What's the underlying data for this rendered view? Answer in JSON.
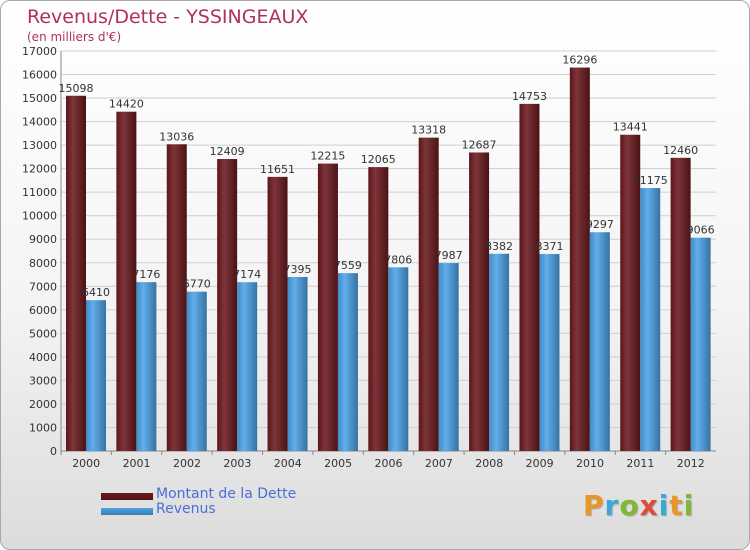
{
  "page": {
    "title": "Revenus/Dette - YSSINGEAUX",
    "subtitle": "(en milliers d'€)"
  },
  "legend": [
    {
      "label": "Montant de la Dette",
      "color": "#6b1a1e"
    },
    {
      "label": "Revenus",
      "color": "#4da3e8"
    }
  ],
  "brand": {
    "text": "Proxiti",
    "colors": [
      "#e8952a",
      "#3aa9d8",
      "#7fb832",
      "#e04a3a",
      "#3aa9d8",
      "#e8952a",
      "#7fb832"
    ]
  },
  "chart_data": {
    "type": "bar",
    "title": "Revenus/Dette - YSSINGEAUX",
    "subtitle": "(en milliers d'€)",
    "categories": [
      "2000",
      "2001",
      "2002",
      "2003",
      "2004",
      "2005",
      "2006",
      "2007",
      "2008",
      "2009",
      "2010",
      "2011",
      "2012"
    ],
    "series": [
      {
        "name": "Montant de la Dette",
        "color": "#6b1a1e",
        "values": [
          15098,
          14420,
          13036,
          12409,
          11651,
          12215,
          12065,
          13318,
          12687,
          14753,
          16296,
          13441,
          12460
        ]
      },
      {
        "name": "Revenus",
        "color": "#4da3e8",
        "values": [
          6410,
          7176,
          6770,
          7174,
          7395,
          7559,
          7806,
          7987,
          8382,
          8371,
          9297,
          11175,
          9066
        ]
      }
    ],
    "ylim": [
      0,
      17000
    ],
    "ytick_step": 1000,
    "grid": true,
    "legend_position": "bottom-left",
    "data_labels": true
  }
}
